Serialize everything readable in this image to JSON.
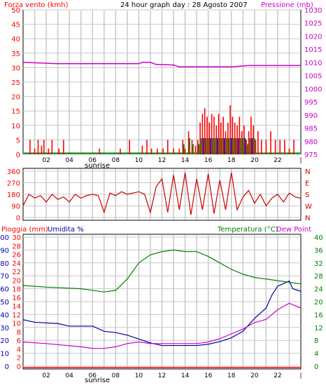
{
  "header": {
    "wind_title": "Forza vento (kmh)",
    "date_title": "24 hour graph day : 28 Agosto 2007",
    "pressure_title": "Pressione (mb)"
  },
  "bottom_header": {
    "rain_title": "Pioggia (mm)",
    "humidity_title": "Umidita %",
    "temp_title": "Temperatura (°C)",
    "dew_title": "Dew Point"
  },
  "x_axis": {
    "ticks": [
      "02",
      "04",
      "06",
      "08",
      "10",
      "12",
      "14",
      "16",
      "18",
      "20",
      "22",
      "|"
    ],
    "sunrise_label": "sunrise"
  },
  "colors": {
    "wind": "#ff0000",
    "gust_blue": "#0000cc",
    "gust_green": "#008000",
    "pressure": "#cc00cc",
    "direction": "#cc0000",
    "humidity": "#0000aa",
    "temperature": "#008000",
    "dewpoint": "#cc00cc",
    "rain": "#ff0000",
    "grid": "#c8c8c8"
  },
  "chart_data": [
    {
      "type": "bar",
      "name": "wind",
      "title": "24 hour graph day : 28 Agosto 2007",
      "ylabel_left": "Forza vento (kmh)",
      "ylabel_right": "Pressione (mb)",
      "ylim_left": [
        0,
        50
      ],
      "ylim_right": [
        975,
        1030
      ],
      "yticks_left": [
        0,
        5,
        10,
        15,
        20,
        25,
        30,
        35,
        40,
        45,
        50
      ],
      "yticks_right": [
        975,
        980,
        985,
        990,
        995,
        1000,
        1005,
        1010,
        1015,
        1020,
        1025,
        1030
      ],
      "wind_bars_hour_kmh": [
        [
          0.6,
          5
        ],
        [
          1.0,
          2
        ],
        [
          1.3,
          5
        ],
        [
          1.6,
          3
        ],
        [
          1.8,
          5
        ],
        [
          2.2,
          2
        ],
        [
          2.5,
          5
        ],
        [
          3.1,
          2
        ],
        [
          3.5,
          5
        ],
        [
          6.6,
          2
        ],
        [
          8.4,
          2
        ],
        [
          9.2,
          5
        ],
        [
          10.3,
          3
        ],
        [
          10.7,
          5
        ],
        [
          11.1,
          2
        ],
        [
          11.6,
          2
        ],
        [
          12.1,
          2
        ],
        [
          12.5,
          5
        ],
        [
          13.0,
          2
        ],
        [
          13.5,
          2
        ],
        [
          13.8,
          5
        ],
        [
          14.0,
          2
        ],
        [
          14.3,
          8
        ],
        [
          14.6,
          5
        ],
        [
          14.9,
          3
        ],
        [
          15.1,
          5
        ],
        [
          15.3,
          11
        ],
        [
          15.5,
          14
        ],
        [
          15.7,
          16
        ],
        [
          15.9,
          13
        ],
        [
          16.1,
          11
        ],
        [
          16.3,
          14
        ],
        [
          16.5,
          13
        ],
        [
          16.7,
          10
        ],
        [
          16.9,
          14
        ],
        [
          17.1,
          11
        ],
        [
          17.3,
          13
        ],
        [
          17.5,
          8
        ],
        [
          17.7,
          11
        ],
        [
          17.9,
          17
        ],
        [
          18.1,
          13
        ],
        [
          18.3,
          11
        ],
        [
          18.5,
          10
        ],
        [
          18.7,
          13
        ],
        [
          18.9,
          8
        ],
        [
          19.1,
          10
        ],
        [
          19.3,
          5
        ],
        [
          19.5,
          8
        ],
        [
          19.7,
          13
        ],
        [
          19.9,
          10
        ],
        [
          20.1,
          5
        ],
        [
          20.3,
          8
        ],
        [
          20.6,
          5
        ],
        [
          21.0,
          5
        ],
        [
          21.4,
          8
        ],
        [
          21.8,
          5
        ],
        [
          22.2,
          5
        ],
        [
          22.6,
          5
        ],
        [
          23.0,
          2
        ],
        [
          23.4,
          5
        ]
      ],
      "pressure_mb": [
        [
          0,
          1010
        ],
        [
          3,
          1009.5
        ],
        [
          10,
          1009.5
        ],
        [
          10.3,
          1010
        ],
        [
          11,
          1010
        ],
        [
          11.5,
          1009.2
        ],
        [
          13,
          1009
        ],
        [
          13.5,
          1008.3
        ],
        [
          18,
          1008.3
        ],
        [
          19.5,
          1008.8
        ],
        [
          24,
          1008.8
        ]
      ]
    },
    {
      "type": "scatter",
      "name": "wind_direction",
      "ylim": [
        0,
        360
      ],
      "yticks": [
        0,
        90,
        180,
        270,
        360
      ],
      "ylabels_right": [
        "N",
        "W",
        "S",
        "E",
        "N"
      ],
      "direction_deg": [
        [
          0,
          90
        ],
        [
          0.5,
          180
        ],
        [
          1,
          150
        ],
        [
          1.5,
          170
        ],
        [
          2,
          120
        ],
        [
          2.5,
          180
        ],
        [
          3,
          140
        ],
        [
          3.5,
          160
        ],
        [
          4,
          120
        ],
        [
          4.5,
          180
        ],
        [
          5,
          150
        ],
        [
          5.5,
          170
        ],
        [
          6,
          180
        ],
        [
          6.5,
          170
        ],
        [
          7,
          40
        ],
        [
          7.5,
          190
        ],
        [
          8,
          170
        ],
        [
          8.5,
          200
        ],
        [
          9,
          180
        ],
        [
          9.5,
          190
        ],
        [
          10,
          200
        ],
        [
          10.5,
          180
        ],
        [
          11,
          40
        ],
        [
          11.5,
          240
        ],
        [
          12,
          300
        ],
        [
          12.5,
          40
        ],
        [
          13,
          330
        ],
        [
          13.5,
          60
        ],
        [
          14,
          350
        ],
        [
          14.5,
          20
        ],
        [
          15,
          300
        ],
        [
          15.5,
          60
        ],
        [
          16,
          340
        ],
        [
          16.5,
          30
        ],
        [
          17,
          290
        ],
        [
          17.5,
          60
        ],
        [
          18,
          350
        ],
        [
          18.5,
          60
        ],
        [
          19,
          160
        ],
        [
          19.5,
          210
        ],
        [
          20,
          110
        ],
        [
          20.5,
          180
        ],
        [
          21,
          90
        ],
        [
          21.5,
          150
        ],
        [
          22,
          180
        ],
        [
          22.5,
          120
        ],
        [
          23,
          190
        ],
        [
          23.5,
          160
        ],
        [
          24,
          150
        ]
      ]
    },
    {
      "type": "line",
      "name": "humidity_temperature",
      "yticks_left": [
        0,
        10,
        20,
        30,
        40,
        50,
        60,
        70,
        80,
        90,
        100
      ],
      "yticks_rain": [
        0,
        2,
        4,
        6,
        8,
        10,
        12,
        14,
        16,
        18,
        20,
        22,
        24,
        26,
        28,
        30
      ],
      "yticks_right": [
        0,
        4,
        8,
        12,
        16,
        20,
        24,
        28,
        32,
        36,
        40
      ],
      "ylim_left": [
        0,
        100
      ],
      "ylim_right": [
        0,
        40
      ],
      "humidity_pct": [
        [
          0,
          36
        ],
        [
          1,
          34
        ],
        [
          3,
          33
        ],
        [
          4,
          31
        ],
        [
          6,
          31
        ],
        [
          7,
          27
        ],
        [
          8,
          26
        ],
        [
          9,
          24
        ],
        [
          10,
          21
        ],
        [
          11,
          18
        ],
        [
          12,
          16
        ],
        [
          13,
          16
        ],
        [
          14,
          16
        ],
        [
          15,
          16
        ],
        [
          16,
          17
        ],
        [
          17,
          19
        ],
        [
          18,
          22
        ],
        [
          19,
          27
        ],
        [
          20,
          37
        ],
        [
          21,
          45
        ],
        [
          21.5,
          55
        ],
        [
          22,
          62
        ],
        [
          23,
          66
        ],
        [
          23.3,
          60
        ],
        [
          24,
          58
        ]
      ],
      "temperature_c": [
        [
          0,
          25
        ],
        [
          2,
          24.5
        ],
        [
          5,
          24
        ],
        [
          7,
          23
        ],
        [
          8,
          23.5
        ],
        [
          9,
          27
        ],
        [
          10,
          32
        ],
        [
          11,
          34.5
        ],
        [
          12,
          35.5
        ],
        [
          13,
          36
        ],
        [
          14,
          35.5
        ],
        [
          15,
          35.5
        ],
        [
          16,
          34
        ],
        [
          17,
          32
        ],
        [
          18,
          30
        ],
        [
          19,
          28.5
        ],
        [
          20,
          27.5
        ],
        [
          21,
          27
        ],
        [
          22,
          26.5
        ],
        [
          23,
          26
        ],
        [
          24,
          25.5
        ]
      ],
      "dewpoint_c": [
        [
          0,
          7.5
        ],
        [
          2,
          7
        ],
        [
          5,
          6
        ],
        [
          6,
          5.5
        ],
        [
          7,
          5.5
        ],
        [
          8,
          6
        ],
        [
          9,
          7
        ],
        [
          10,
          7.5
        ],
        [
          11,
          7
        ],
        [
          12,
          7
        ],
        [
          13,
          7
        ],
        [
          14,
          7
        ],
        [
          15,
          7
        ],
        [
          16,
          7.5
        ],
        [
          17,
          8.5
        ],
        [
          18,
          10
        ],
        [
          19,
          11.5
        ],
        [
          20,
          13.5
        ],
        [
          21,
          14.5
        ],
        [
          22,
          17.5
        ],
        [
          23,
          19.5
        ],
        [
          24,
          18
        ]
      ],
      "rain_mm": [
        [
          0,
          0
        ],
        [
          24,
          0
        ]
      ]
    }
  ]
}
